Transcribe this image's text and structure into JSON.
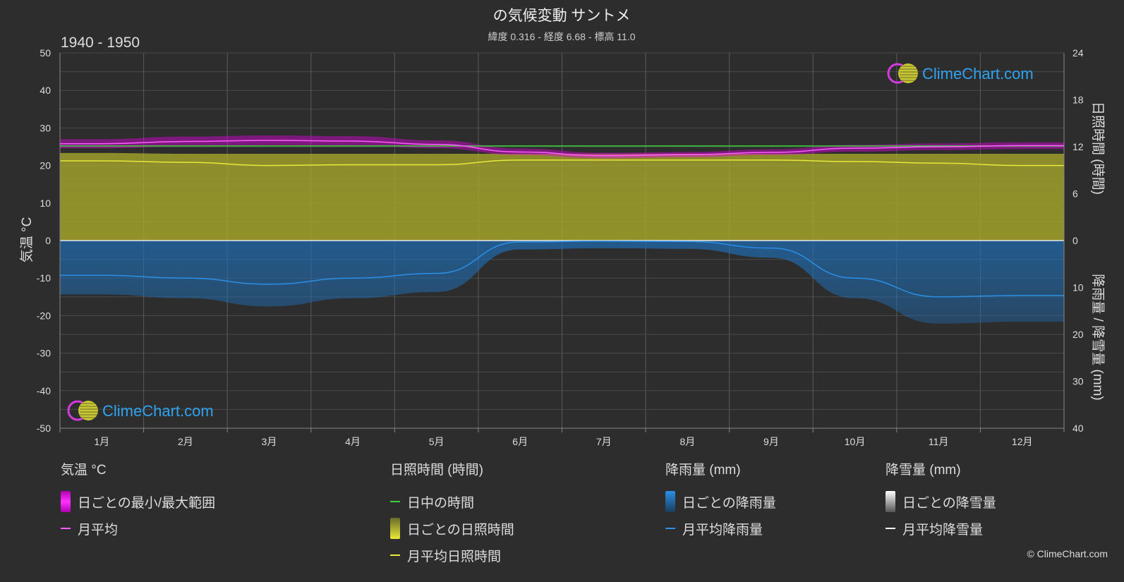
{
  "title": "の気候変動 サントメ",
  "subtitle": "緯度 0.316 - 経度 6.68 - 標高 11.0",
  "period": "1940 - 1950",
  "logo_text": "ClimeChart.com",
  "copyright": "© ClimeChart.com",
  "colors": {
    "background": "#2d2d2d",
    "temp_range": "#e000e0",
    "temp_avg": "#ff5cff",
    "daylight": "#3ad13a",
    "sunshine_fill": "#a9a92a",
    "sunshine_avg": "#e8e83a",
    "rain_fill": "#1f6eb5",
    "rain_avg": "#2b8fe6",
    "snow": "#ffffff"
  },
  "chart_data": {
    "type": "area",
    "categories": [
      "1月",
      "2月",
      "3月",
      "4月",
      "5月",
      "6月",
      "7月",
      "8月",
      "9月",
      "10月",
      "11月",
      "12月"
    ],
    "left_axis": {
      "label": "気温 °C",
      "range": [
        -50,
        50
      ],
      "ticks": [
        50,
        40,
        30,
        20,
        10,
        0,
        -10,
        -20,
        -30,
        -40,
        -50
      ]
    },
    "right_axis_top": {
      "label": "日照時間 (時間)",
      "range": [
        0,
        24
      ],
      "ticks": [
        24,
        18,
        12,
        6,
        0
      ]
    },
    "right_axis_bottom": {
      "label": "降雨量 / 降雪量 (mm)",
      "range": [
        0,
        40
      ],
      "ticks": [
        10,
        20,
        30,
        40
      ]
    },
    "grid": true,
    "series": [
      {
        "name": "月平均",
        "axis": "temp",
        "values": [
          25.8,
          26.4,
          26.7,
          26.5,
          25.6,
          23.6,
          22.6,
          22.9,
          23.5,
          24.6,
          25.0,
          25.3
        ]
      },
      {
        "name": "日ごとの最小/最大範囲",
        "axis": "temp",
        "min": [
          24.6,
          25.1,
          25.4,
          25.3,
          24.6,
          22.8,
          21.9,
          22.2,
          22.8,
          23.7,
          24.1,
          24.4
        ],
        "max": [
          27.0,
          27.7,
          28.0,
          27.8,
          26.7,
          24.5,
          23.4,
          23.6,
          24.3,
          25.5,
          25.9,
          26.2
        ]
      },
      {
        "name": "日中の時間",
        "axis": "sun",
        "values": [
          12.1,
          12.1,
          12.1,
          12.1,
          12.1,
          12.1,
          12.1,
          12.1,
          12.1,
          12.1,
          12.1,
          12.1
        ]
      },
      {
        "name": "日ごとの日照時間",
        "axis": "sun",
        "values": [
          11.2,
          11.1,
          11.1,
          11.1,
          11.1,
          11.1,
          11.1,
          11.1,
          11.1,
          11.1,
          11.1,
          11.1
        ]
      },
      {
        "name": "月平均日照時間",
        "axis": "sun",
        "values": [
          10.2,
          10.0,
          9.6,
          9.7,
          9.7,
          10.3,
          10.3,
          10.3,
          10.3,
          10.1,
          9.9,
          9.6
        ]
      },
      {
        "name": "月平均降雨量",
        "axis": "rain",
        "values": [
          7.4,
          8.0,
          9.3,
          8.0,
          7.0,
          0.3,
          0.1,
          0.2,
          1.6,
          8.0,
          12.0,
          11.7
        ]
      },
      {
        "name": "月平均降雪量",
        "axis": "rain",
        "values": [
          0,
          0,
          0,
          0,
          0,
          0,
          0,
          0,
          0,
          0,
          0,
          0
        ]
      }
    ]
  },
  "legend": {
    "temperature": {
      "title": "気温 °C",
      "range": "日ごとの最小/最大範囲",
      "avg": "月平均"
    },
    "sunshine": {
      "title": "日照時間 (時間)",
      "daylight": "日中の時間",
      "daily": "日ごとの日照時間",
      "avg": "月平均日照時間"
    },
    "rain": {
      "title": "降雨量 (mm)",
      "daily": "日ごとの降雨量",
      "avg": "月平均降雨量"
    },
    "snow": {
      "title": "降雪量 (mm)",
      "daily": "日ごとの降雪量",
      "avg": "月平均降雪量"
    }
  }
}
